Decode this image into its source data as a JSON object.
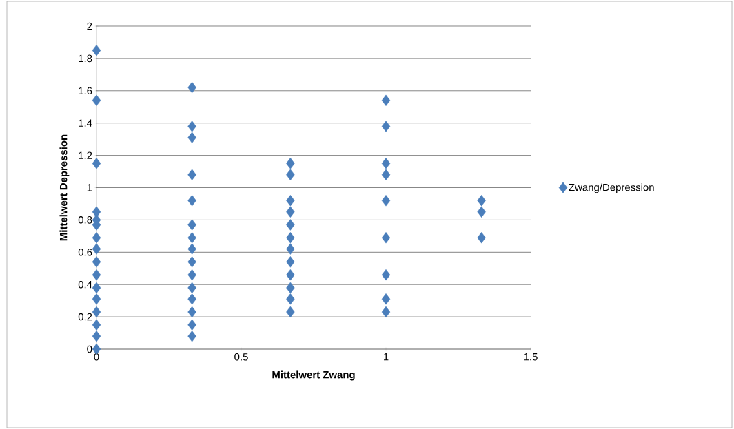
{
  "chart_data": {
    "type": "scatter",
    "xlabel": "Mittelwert Zwang",
    "ylabel": "Mittelwert Depression",
    "xlim": [
      0,
      1.5
    ],
    "xticks": [
      0,
      0.5,
      1,
      1.5
    ],
    "ylim": [
      0,
      2
    ],
    "yticks": [
      0,
      0.2,
      0.4,
      0.6,
      0.8,
      1,
      1.2,
      1.4,
      1.6,
      1.8,
      2
    ],
    "grid": "y",
    "legend": "right",
    "marker": "diamond",
    "series": [
      {
        "name": "Zwang/Depression",
        "color": "#4a7ebb",
        "x": [
          0,
          0,
          0,
          0,
          0,
          0,
          0,
          0,
          0,
          0,
          0,
          0,
          0,
          0,
          0,
          0,
          0.33,
          0.33,
          0.33,
          0.33,
          0.33,
          0.33,
          0.33,
          0.33,
          0.33,
          0.33,
          0.33,
          0.33,
          0.33,
          0.33,
          0.33,
          0.67,
          0.67,
          0.67,
          0.67,
          0.67,
          0.67,
          0.67,
          0.67,
          0.67,
          0.67,
          0.67,
          0.67,
          1,
          1,
          1,
          1,
          1,
          1,
          1,
          1,
          1,
          1.33,
          1.33,
          1.33
        ],
        "values": [
          0,
          0.08,
          0.15,
          0.23,
          0.31,
          0.38,
          0.46,
          0.54,
          0.62,
          0.69,
          0.77,
          0.8,
          0.85,
          1.15,
          1.54,
          1.85,
          0.08,
          0.15,
          0.23,
          0.31,
          0.38,
          0.46,
          0.54,
          0.62,
          0.69,
          0.77,
          0.92,
          1.08,
          1.31,
          1.38,
          1.62,
          0.23,
          0.31,
          0.38,
          0.46,
          0.54,
          0.62,
          0.69,
          0.77,
          0.85,
          0.92,
          1.08,
          1.15,
          0.23,
          0.31,
          0.46,
          0.69,
          0.92,
          1.08,
          1.15,
          1.38,
          1.54,
          0.69,
          0.85,
          0.92
        ]
      }
    ]
  }
}
